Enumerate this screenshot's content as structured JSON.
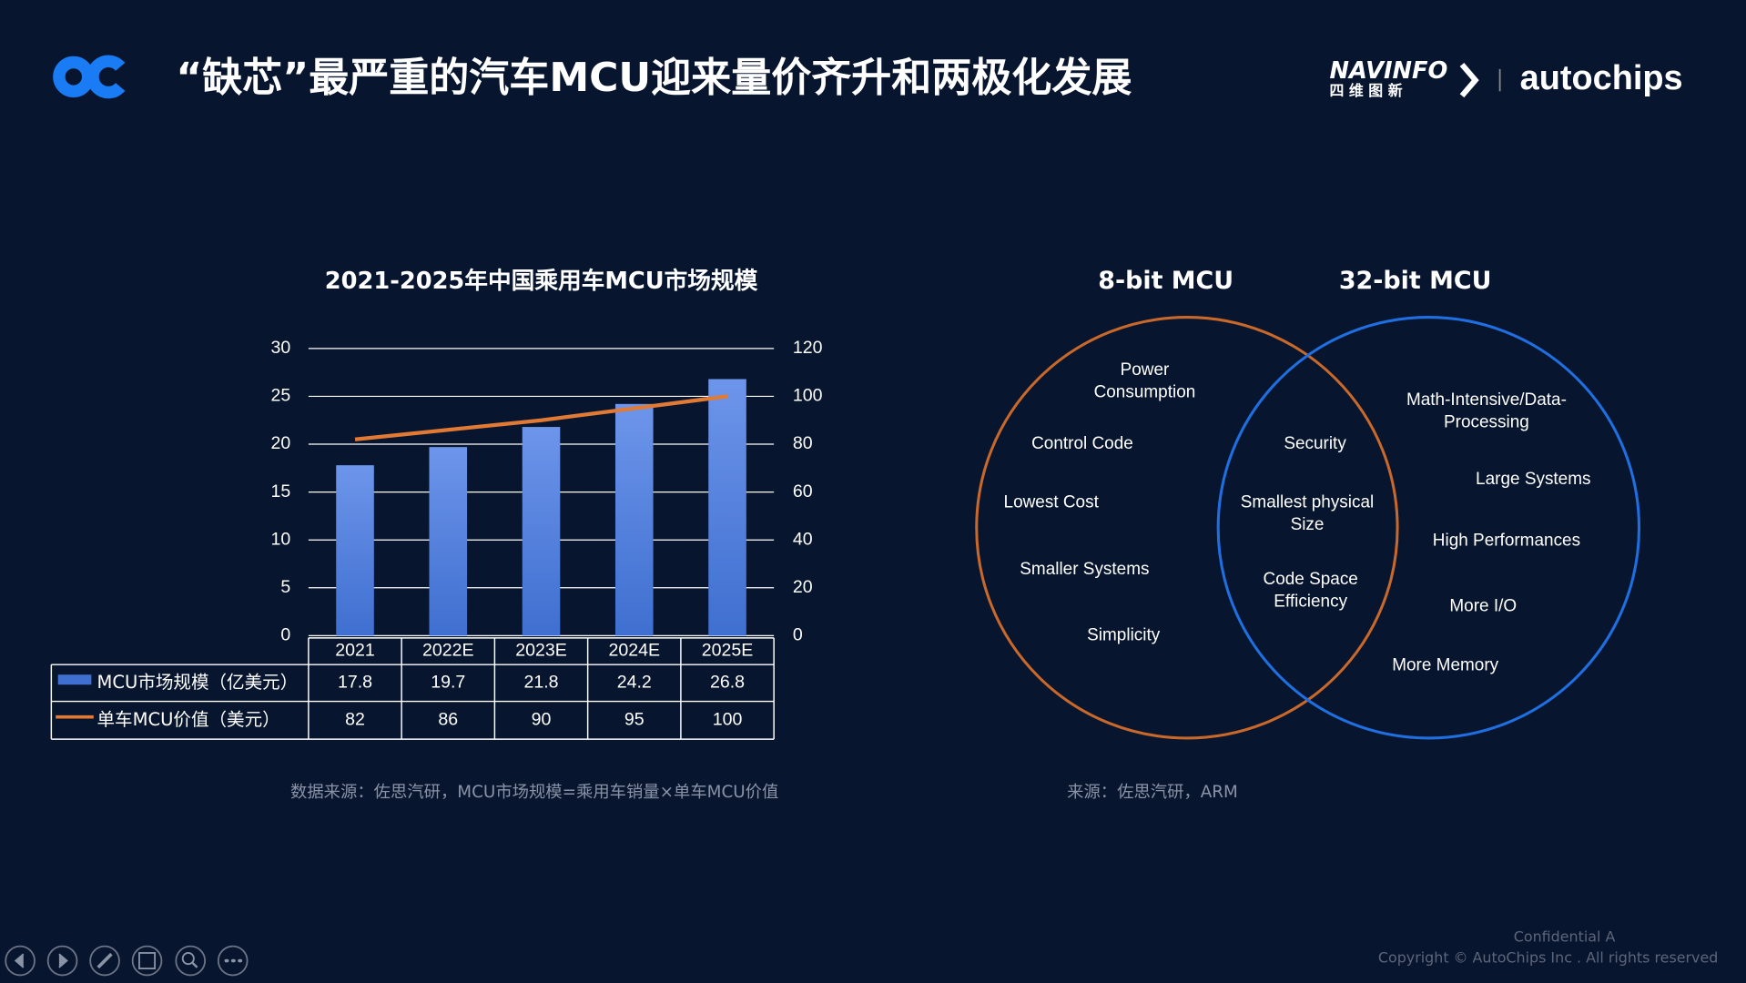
{
  "header": {
    "title": "“缺芯”最严重的汽车MCU迎来量价齐升和两极化发展",
    "logo_navinfo": "NAVINFO",
    "logo_navinfo_cn": "四 维 图 新",
    "logo_autochips": "autochips"
  },
  "chart_data": {
    "type": "bar",
    "title": "2021-2025年中国乘用车MCU市场规模",
    "categories": [
      "2021",
      "2022E",
      "2023E",
      "2024E",
      "2025E"
    ],
    "series": [
      {
        "name": "MCU市场规模（亿美元）",
        "type": "bar",
        "color": "#3f6fd0",
        "values": [
          17.8,
          19.7,
          21.8,
          24.2,
          26.8
        ]
      },
      {
        "name": "单车MCU价值（美元）",
        "type": "line",
        "axis": "y2",
        "color": "#e07a35",
        "values": [
          82,
          86,
          90,
          95,
          100
        ]
      }
    ],
    "ylim": [
      0,
      30
    ],
    "yticks": [
      0,
      5,
      10,
      15,
      20,
      25,
      30
    ],
    "y2lim": [
      0,
      120
    ],
    "y2ticks": [
      0,
      20,
      40,
      60,
      80,
      100,
      120
    ],
    "grid": true,
    "source": "数据来源：佐思汽研，MCU市场规模=乘用车销量×单车MCU价值"
  },
  "venn": {
    "left_title": "8-bit MCU",
    "right_title": "32-bit MCU",
    "left_items": [
      "Power Consumption",
      "Control Code",
      "Lowest Cost",
      "Smaller Systems",
      "Simplicity"
    ],
    "overlap_items": [
      "Security",
      "Smallest physical Size",
      "Code Space Efficiency"
    ],
    "right_items": [
      "Math-Intensive/Data-Processing",
      "Large Systems",
      "High Performances",
      "More I/O",
      "More Memory"
    ],
    "source": "来源：佐思汽研，ARM"
  },
  "footer": {
    "confidential": "Confidential A",
    "copyright": "Copyright © AutoChips Inc . All rights reserved"
  }
}
